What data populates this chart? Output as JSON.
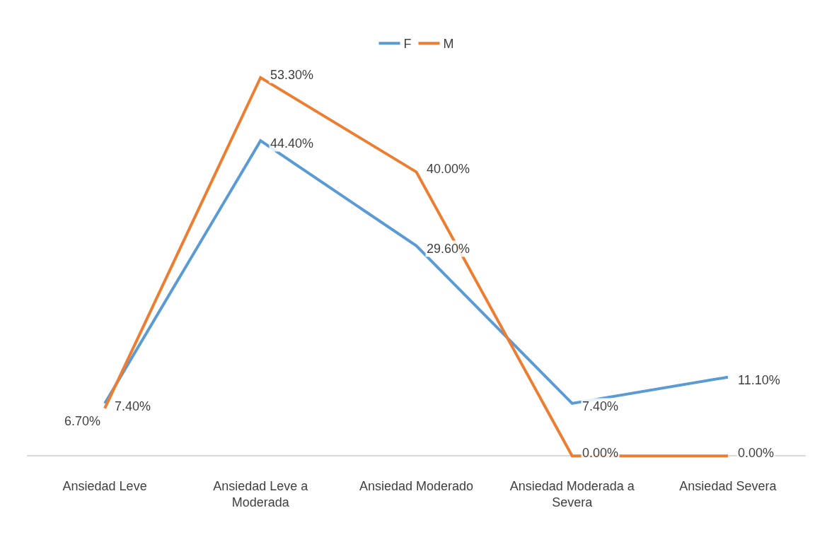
{
  "chart_data": {
    "type": "line",
    "categories": [
      "Ansiedad Leve",
      "Ansiedad Leve a Moderada",
      "Ansiedad Moderado",
      "Ansiedad Moderada a Severa",
      "Ansiedad Severa"
    ],
    "series": [
      {
        "name": "F",
        "color": "#5b9bd5",
        "values": [
          7.4,
          44.4,
          29.6,
          7.4,
          11.1
        ],
        "value_labels": [
          "7.40%",
          "44.40%",
          "29.60%",
          "7.40%",
          "11.10%"
        ]
      },
      {
        "name": "M",
        "color": "#ed7d31",
        "values": [
          6.7,
          53.3,
          40.0,
          0.0,
          0.0
        ],
        "value_labels": [
          "6.70%",
          "53.30%",
          "40.00%",
          "0.00%",
          "0.00%"
        ]
      }
    ],
    "legend": "top",
    "marker": "none",
    "line_style": "solid"
  }
}
